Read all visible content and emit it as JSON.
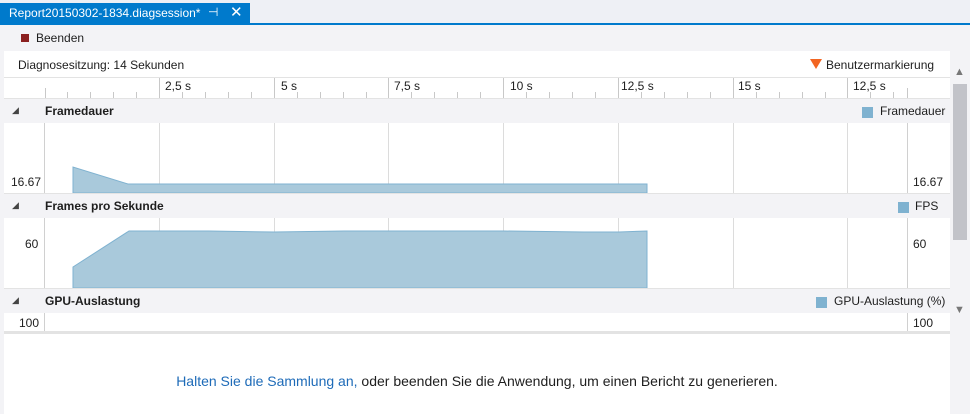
{
  "tab": {
    "title": "Report20150302-1834.diagsession*",
    "pin_glyph": "⊣",
    "close_glyph": "✕"
  },
  "toolbar": {
    "stop_label": "Beenden"
  },
  "session": {
    "label": "Diagnosesitzung: 14 Sekunden",
    "marker_label": "Benutzermarkierung",
    "marker_color": "#f26522"
  },
  "ruler": {
    "labels": [
      "2,5 s",
      "5 s",
      "7,5 s",
      "10 s",
      "12,5 s",
      "15 s",
      "12,5 s"
    ]
  },
  "sections": {
    "framedauer": {
      "title": "Framedauer",
      "legend": "Framedauer",
      "axis_left": "16.67",
      "axis_right": "16.67"
    },
    "fps": {
      "title": "Frames pro Sekunde",
      "legend": "FPS",
      "axis_left": "60",
      "axis_right": "60"
    },
    "gpu": {
      "title": "GPU-Auslastung",
      "legend": "GPU-Auslastung (%)",
      "axis_left": "100",
      "axis_right": "100"
    }
  },
  "message": {
    "link": "Halten Sie die Sammlung an,",
    "rest": " oder beenden Sie die Anwendung, um einen Bericht zu generieren."
  },
  "colors": {
    "accent": "#007acc",
    "series_fill": "#a9c9db",
    "series_stroke": "#7fb2d0"
  },
  "chart_data": [
    {
      "type": "area",
      "title": "Framedauer",
      "series": [
        {
          "name": "Framedauer",
          "x": [
            0.9,
            2.3,
            13.9
          ],
          "values": [
            18.5,
            16.67,
            16.67
          ]
        }
      ]
    },
    {
      "type": "area",
      "title": "Frames pro Sekunde",
      "series": [
        {
          "name": "FPS",
          "x": [
            0.9,
            2.3,
            5.0,
            8.0,
            11.0,
            13.2,
            13.9
          ],
          "values": [
            30,
            60,
            60,
            59.5,
            60,
            59.5,
            60
          ]
        }
      ]
    }
  ]
}
